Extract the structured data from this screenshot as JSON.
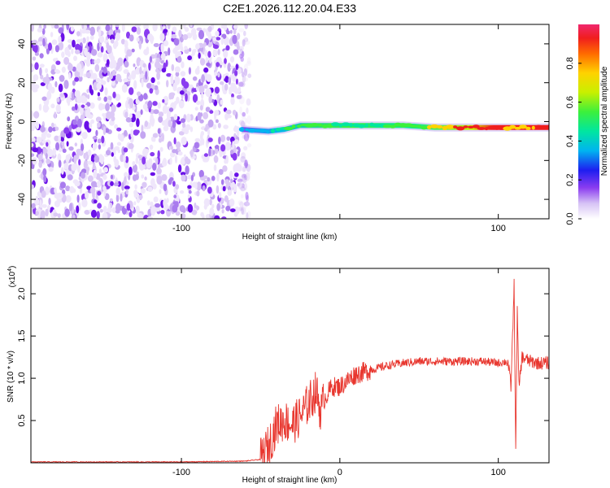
{
  "title": "C2E1.2026.112.20.04.E33",
  "chart_data": [
    {
      "type": "heatmap",
      "xlabel": "Height of straight line (km)",
      "ylabel": "Frequency (Hz)",
      "xlim": [
        -195,
        132
      ],
      "ylim": [
        -50,
        50
      ],
      "x_ticks": [
        -100,
        0,
        100
      ],
      "x_tick_labels": [
        "-100",
        "",
        "100"
      ],
      "y_ticks": [
        -40,
        -20,
        0,
        20,
        40
      ],
      "y_tick_labels": [
        "-40",
        "-20",
        "0",
        "20",
        "40"
      ],
      "noise_region_x": [
        -195,
        -57
      ],
      "signal_band": {
        "x": [
          -62,
          -45,
          -35,
          -25,
          -15,
          -5,
          5,
          20,
          40,
          60,
          80,
          100,
          110,
          132
        ],
        "freq_hz": [
          -4,
          -5,
          -4,
          -2,
          -2,
          -2,
          -2,
          -2,
          -2,
          -3,
          -3,
          -3,
          -3,
          -3
        ],
        "amplitude": [
          0.3,
          0.45,
          0.55,
          0.6,
          0.6,
          0.55,
          0.55,
          0.5,
          0.6,
          0.75,
          0.95,
          0.95,
          0.7,
          0.95
        ]
      },
      "colorbar": {
        "label": "Normalized spectral amplitude",
        "range": [
          0,
          1
        ],
        "ticks": [
          0.0,
          0.2,
          0.4,
          0.6,
          0.8
        ],
        "tick_labels": [
          "0.0",
          "0.2",
          "0.4",
          "0.6",
          "0.8"
        ]
      }
    },
    {
      "type": "line",
      "xlabel": "Height of straight line (km)",
      "ylabel": "SNR (10 * v/v)",
      "y_multiplier": "(x10",
      "y_multiplier_exp": "4",
      "y_multiplier_close": ")",
      "xlim": [
        -195,
        132
      ],
      "ylim": [
        0.0,
        2.3
      ],
      "x_ticks": [
        -100,
        0,
        100
      ],
      "x_tick_labels": [
        "-100",
        "0",
        "100"
      ],
      "y_ticks": [
        0.5,
        1.0,
        1.5,
        2.0
      ],
      "y_tick_labels": [
        "0.5",
        "1.0",
        "1.5",
        "2.0"
      ],
      "color": "#e8362e",
      "series": [
        {
          "x": [
            -195,
            -150,
            -100,
            -60,
            -50,
            -45,
            -40,
            -35,
            -30,
            -25,
            -20,
            -15,
            -12,
            -10,
            -5,
            0,
            10,
            20,
            30,
            40,
            50,
            60,
            70,
            80,
            90,
            100,
            106,
            108,
            110,
            111,
            112,
            113,
            115,
            120,
            125,
            132
          ],
          "values": [
            0.01,
            0.01,
            0.01,
            0.02,
            0.04,
            0.2,
            0.45,
            0.5,
            0.45,
            0.55,
            0.7,
            0.85,
            0.6,
            0.75,
            0.9,
            0.9,
            1.05,
            1.1,
            1.15,
            1.18,
            1.2,
            1.2,
            1.2,
            1.2,
            1.2,
            1.18,
            1.2,
            0.9,
            2.1,
            0.15,
            1.8,
            0.9,
            1.25,
            1.2,
            1.18,
            1.18
          ]
        }
      ]
    }
  ]
}
